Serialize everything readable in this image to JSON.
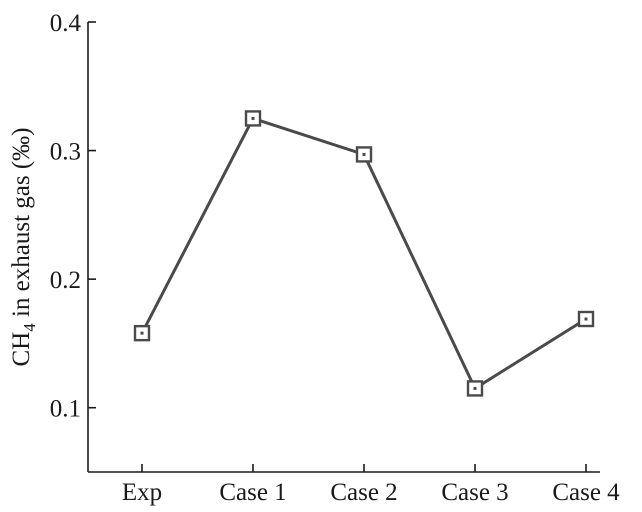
{
  "chart_data": {
    "type": "line",
    "categories": [
      "Exp",
      "Case 1",
      "Case 2",
      "Case 3",
      "Case 4"
    ],
    "series": [
      {
        "values": [
          0.158,
          0.325,
          0.297,
          0.115,
          0.169
        ]
      }
    ],
    "ylabel_main": "CH",
    "ylabel_sub": "4",
    "ylabel_rest": " in exhaust gas (‰)",
    "ylim": [
      0.05,
      0.4
    ],
    "yticks": [
      0.1,
      0.2,
      0.3,
      0.4
    ],
    "ytick_labels": [
      "0.1",
      "0.2",
      "0.3",
      "0.4"
    ],
    "grid": false,
    "marker": "square-with-dot",
    "line_color": "#4a4a4a"
  }
}
